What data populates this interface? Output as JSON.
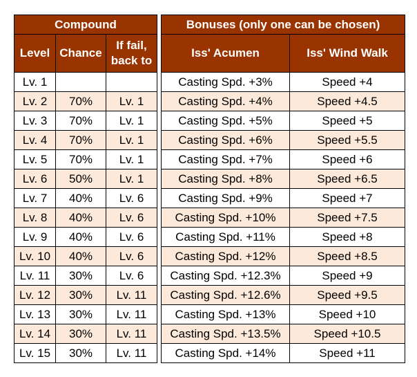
{
  "colors": {
    "header_bg": "#993300",
    "header_text": "#ffffff",
    "stripe": "#fde9d9",
    "border": "#000000"
  },
  "compound": {
    "title": "Compound",
    "headers": {
      "level": "Level",
      "chance": "Chance",
      "fail_line1": "If fail,",
      "fail_line2": "back to"
    },
    "rows": [
      {
        "level": "Lv. 1",
        "chance": "",
        "fail": ""
      },
      {
        "level": "Lv. 2",
        "chance": "70%",
        "fail": "Lv. 1"
      },
      {
        "level": "Lv. 3",
        "chance": "70%",
        "fail": "Lv. 1"
      },
      {
        "level": "Lv. 4",
        "chance": "70%",
        "fail": "Lv. 1"
      },
      {
        "level": "Lv. 5",
        "chance": "70%",
        "fail": "Lv. 1"
      },
      {
        "level": "Lv. 6",
        "chance": "50%",
        "fail": "Lv. 1"
      },
      {
        "level": "Lv. 7",
        "chance": "40%",
        "fail": "Lv. 6"
      },
      {
        "level": "Lv. 8",
        "chance": "40%",
        "fail": "Lv. 6"
      },
      {
        "level": "Lv. 9",
        "chance": "40%",
        "fail": "Lv. 6"
      },
      {
        "level": "Lv. 10",
        "chance": "40%",
        "fail": "Lv. 6"
      },
      {
        "level": "Lv. 11",
        "chance": "30%",
        "fail": "Lv. 6"
      },
      {
        "level": "Lv. 12",
        "chance": "30%",
        "fail": "Lv. 11"
      },
      {
        "level": "Lv. 13",
        "chance": "30%",
        "fail": "Lv. 11"
      },
      {
        "level": "Lv. 14",
        "chance": "30%",
        "fail": "Lv. 11"
      },
      {
        "level": "Lv. 15",
        "chance": "30%",
        "fail": "Lv. 11"
      }
    ]
  },
  "bonuses": {
    "title": "Bonuses (only one can be chosen)",
    "headers": {
      "acumen": "Iss' Acumen",
      "wind_walk": "Iss' Wind Walk"
    },
    "rows": [
      {
        "acumen": "Casting Spd. +3%",
        "wind_walk": "Speed +4"
      },
      {
        "acumen": "Casting Spd. +4%",
        "wind_walk": "Speed +4.5"
      },
      {
        "acumen": "Casting Spd. +5%",
        "wind_walk": "Speed +5"
      },
      {
        "acumen": "Casting Spd. +6%",
        "wind_walk": "Speed +5.5"
      },
      {
        "acumen": "Casting Spd. +7%",
        "wind_walk": "Speed +6"
      },
      {
        "acumen": "Casting Spd. +8%",
        "wind_walk": "Speed +6.5"
      },
      {
        "acumen": "Casting Spd. +9%",
        "wind_walk": "Speed +7"
      },
      {
        "acumen": "Casting Spd. +10%",
        "wind_walk": "Speed +7.5"
      },
      {
        "acumen": "Casting Spd. +11%",
        "wind_walk": "Speed +8"
      },
      {
        "acumen": "Casting Spd. +12%",
        "wind_walk": "Speed +8.5"
      },
      {
        "acumen": "Casting Spd. +12.3%",
        "wind_walk": "Speed +9"
      },
      {
        "acumen": "Casting Spd. +12.6%",
        "wind_walk": "Speed +9.5"
      },
      {
        "acumen": "Casting Spd. +13%",
        "wind_walk": "Speed +10"
      },
      {
        "acumen": "Casting Spd. +13.5%",
        "wind_walk": "Speed +10.5"
      },
      {
        "acumen": "Casting Spd. +14%",
        "wind_walk": "Speed +11"
      }
    ]
  }
}
